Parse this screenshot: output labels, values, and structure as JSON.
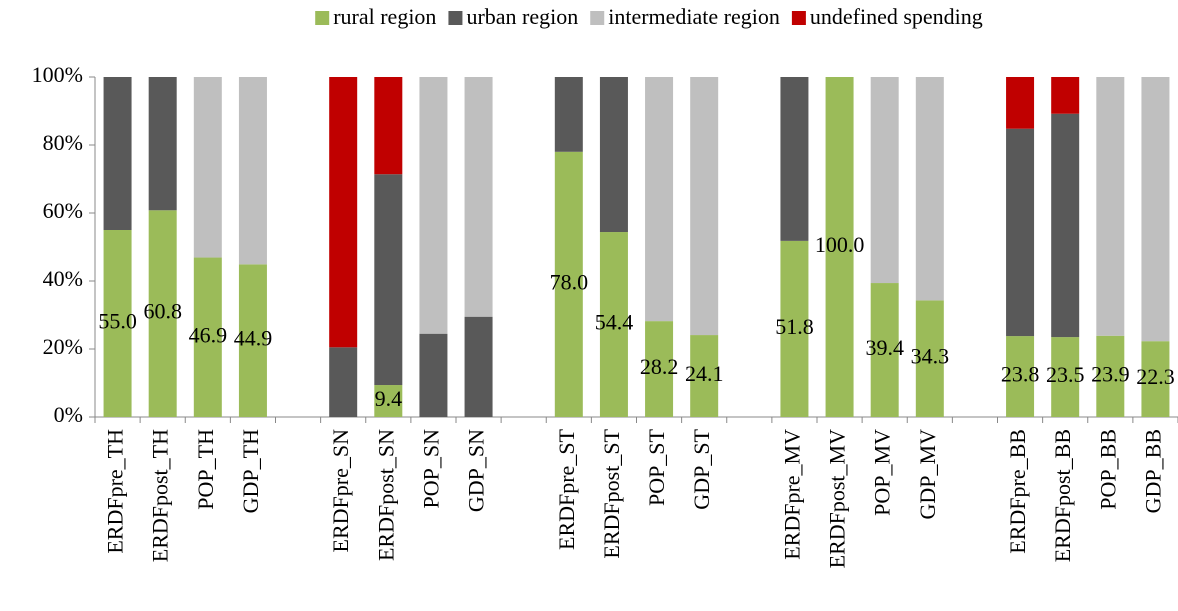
{
  "chart_data": {
    "type": "stacked_bar",
    "categories": [
      "ERDFpre_TH",
      "ERDFpost_TH",
      "POP_TH",
      "GDP_TH",
      null,
      "ERDFpre_SN",
      "ERDFpost_SN",
      "POP_SN",
      "GDP_SN",
      null,
      "ERDFpre_ST",
      "ERDFpost_ST",
      "POP_ST",
      "GDP_ST",
      null,
      "ERDFpre_MV",
      "ERDFpost_MV",
      "POP_MV",
      "GDP_MV",
      null,
      "ERDFpre_BB",
      "ERDFpost_BB",
      "POP_BB",
      "GDP_BB"
    ],
    "series": [
      {
        "name": "rural region",
        "color": "#9bbb59",
        "values": [
          55.0,
          60.8,
          46.9,
          44.9,
          null,
          0,
          9.4,
          0,
          0,
          null,
          78.0,
          54.4,
          28.2,
          24.1,
          null,
          51.8,
          100.0,
          39.4,
          34.3,
          null,
          23.8,
          23.5,
          23.9,
          22.3
        ],
        "value_labels": [
          "55.0",
          "60.8",
          "46.9",
          "44.9",
          null,
          null,
          "9.4",
          null,
          null,
          null,
          "78.0",
          "54.4",
          "28.2",
          "24.1",
          null,
          "51.8",
          "100.0",
          "39.4",
          "34.3",
          null,
          "23.8",
          "23.5",
          "23.9",
          "22.3"
        ]
      },
      {
        "name": "urban region",
        "color": "#595959",
        "values": [
          45.0,
          39.2,
          0,
          0,
          null,
          20.5,
          62.0,
          24.5,
          29.5,
          null,
          22.0,
          45.6,
          0,
          0,
          null,
          48.2,
          0,
          0,
          0,
          null,
          61.0,
          65.7,
          0,
          0
        ]
      },
      {
        "name": "intermediate region",
        "color": "#bfbfbf",
        "values": [
          0,
          0,
          53.1,
          55.1,
          null,
          0,
          0,
          75.5,
          70.5,
          null,
          0,
          0,
          71.8,
          75.9,
          null,
          0,
          0,
          60.6,
          65.7,
          null,
          0,
          0,
          76.1,
          77.7
        ]
      },
      {
        "name": "undefined spending",
        "color": "#c00000",
        "values": [
          0,
          0,
          0,
          0,
          null,
          79.5,
          28.6,
          0,
          0,
          null,
          0,
          0,
          0,
          0,
          null,
          0,
          0,
          0,
          0,
          null,
          15.2,
          10.8,
          0,
          0
        ]
      }
    ],
    "ylim": [
      0,
      100
    ],
    "yticks": [
      {
        "value": 0,
        "label": "0%"
      },
      {
        "value": 20,
        "label": "20%"
      },
      {
        "value": 40,
        "label": "40%"
      },
      {
        "value": 60,
        "label": "60%"
      },
      {
        "value": 80,
        "label": "80%"
      },
      {
        "value": 100,
        "label": "100%"
      }
    ],
    "grid": false,
    "legend": "top"
  }
}
